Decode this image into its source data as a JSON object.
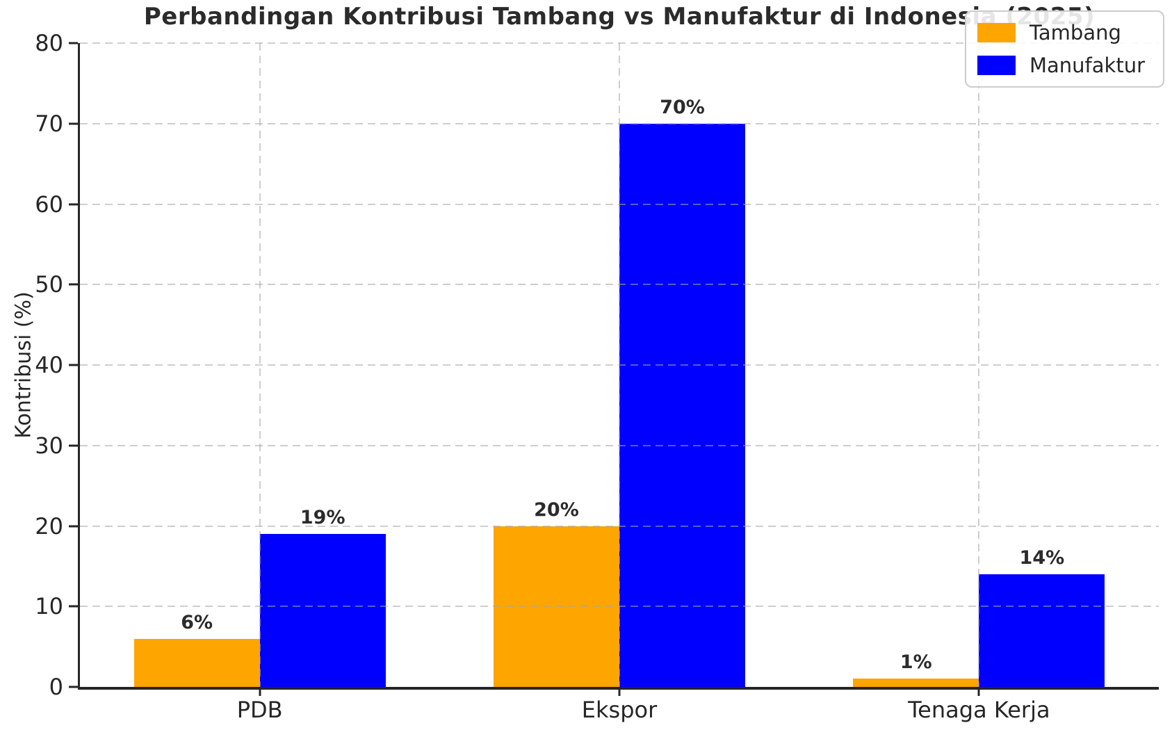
{
  "chart_data": {
    "type": "bar",
    "title": "Perbandingan Kontribusi Tambang vs Manufaktur di Indonesia (2025)",
    "xlabel": "",
    "ylabel": "Kontribusi (%)",
    "categories": [
      "PDB",
      "Ekspor",
      "Tenaga Kerja"
    ],
    "series": [
      {
        "name": "Tambang",
        "color": "#FFA500",
        "values": [
          6,
          20,
          1
        ],
        "value_labels": [
          "6%",
          "20%",
          "1%"
        ]
      },
      {
        "name": "Manufaktur",
        "color": "#0000FF",
        "values": [
          19,
          70,
          14
        ],
        "value_labels": [
          "19%",
          "70%",
          "14%"
        ]
      }
    ],
    "ylim": [
      0,
      80
    ],
    "yticks": [
      0,
      10,
      20,
      30,
      40,
      50,
      60,
      70,
      80
    ],
    "grid": "dashed, horizontal and vertical",
    "legend_position": "upper right",
    "bar_width_fraction": 0.35
  },
  "colors": {
    "background": "#ffffff",
    "text": "#262626",
    "axis": "#262626",
    "gridline": "#cfcfcf",
    "tambang": "#FFA500",
    "manufaktur": "#0000FF",
    "legend_border": "#cccccc"
  }
}
